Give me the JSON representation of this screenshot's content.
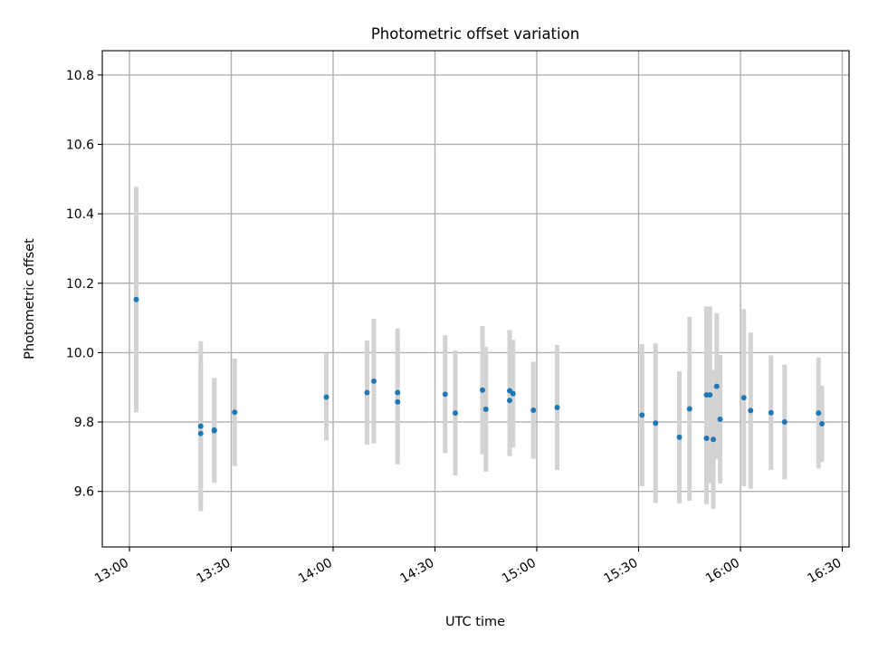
{
  "chart_data": {
    "type": "scatter",
    "title": "Photometric offset variation",
    "xlabel": "UTC time",
    "ylabel": "Photometric offset",
    "x_tick_labels": [
      "13:00",
      "13:30",
      "14:00",
      "14:30",
      "15:00",
      "15:30",
      "16:00",
      "16:30"
    ],
    "y_tick_labels": [
      "9.6",
      "9.8",
      "10.0",
      "10.2",
      "10.4",
      "10.6",
      "10.8"
    ],
    "y_ticks": [
      9.6,
      9.8,
      10.0,
      10.2,
      10.4,
      10.6,
      10.8
    ],
    "xlim": [
      "12:52",
      "16:32"
    ],
    "ylim": [
      9.44,
      10.87
    ],
    "grid": true,
    "colors": {
      "point": "#1f77b4",
      "errorbar": "#d3d3d3"
    },
    "points": [
      {
        "x": "13:02",
        "y": 10.153,
        "yerr": 0.325
      },
      {
        "x": "13:21",
        "y": 9.767,
        "yerr": 0.2
      },
      {
        "x": "13:21",
        "y": 9.788,
        "yerr": 0.245
      },
      {
        "x": "13:25",
        "y": 9.775,
        "yerr": 0.15
      },
      {
        "x": "13:25",
        "y": 9.777,
        "yerr": 0.15
      },
      {
        "x": "13:31",
        "y": 9.828,
        "yerr": 0.155
      },
      {
        "x": "13:58",
        "y": 9.872,
        "yerr": 0.125
      },
      {
        "x": "14:10",
        "y": 9.885,
        "yerr": 0.15
      },
      {
        "x": "14:12",
        "y": 9.918,
        "yerr": 0.18
      },
      {
        "x": "14:19",
        "y": 9.858,
        "yerr": 0.18
      },
      {
        "x": "14:19",
        "y": 9.885,
        "yerr": 0.185
      },
      {
        "x": "14:33",
        "y": 9.88,
        "yerr": 0.17
      },
      {
        "x": "14:36",
        "y": 9.826,
        "yerr": 0.18
      },
      {
        "x": "14:44",
        "y": 9.892,
        "yerr": 0.185
      },
      {
        "x": "14:45",
        "y": 9.837,
        "yerr": 0.18
      },
      {
        "x": "14:52",
        "y": 9.89,
        "yerr": 0.175
      },
      {
        "x": "14:52",
        "y": 9.862,
        "yerr": 0.16
      },
      {
        "x": "14:53",
        "y": 9.882,
        "yerr": 0.155
      },
      {
        "x": "14:59",
        "y": 9.834,
        "yerr": 0.14
      },
      {
        "x": "15:06",
        "y": 9.842,
        "yerr": 0.18
      },
      {
        "x": "15:31",
        "y": 9.82,
        "yerr": 0.205
      },
      {
        "x": "15:35",
        "y": 9.797,
        "yerr": 0.23
      },
      {
        "x": "15:42",
        "y": 9.756,
        "yerr": 0.19
      },
      {
        "x": "15:45",
        "y": 9.838,
        "yerr": 0.265
      },
      {
        "x": "15:50",
        "y": 9.753,
        "yerr": 0.19
      },
      {
        "x": "15:50",
        "y": 9.878,
        "yerr": 0.255
      },
      {
        "x": "15:51",
        "y": 9.878,
        "yerr": 0.255
      },
      {
        "x": "15:52",
        "y": 9.75,
        "yerr": 0.2
      },
      {
        "x": "15:53",
        "y": 9.903,
        "yerr": 0.21
      },
      {
        "x": "15:54",
        "y": 9.808,
        "yerr": 0.185
      },
      {
        "x": "16:01",
        "y": 9.87,
        "yerr": 0.255
      },
      {
        "x": "16:03",
        "y": 9.833,
        "yerr": 0.225
      },
      {
        "x": "16:09",
        "y": 9.827,
        "yerr": 0.165
      },
      {
        "x": "16:13",
        "y": 9.8,
        "yerr": 0.165
      },
      {
        "x": "16:23",
        "y": 9.826,
        "yerr": 0.16
      },
      {
        "x": "16:24",
        "y": 9.795,
        "yerr": 0.11
      }
    ]
  }
}
